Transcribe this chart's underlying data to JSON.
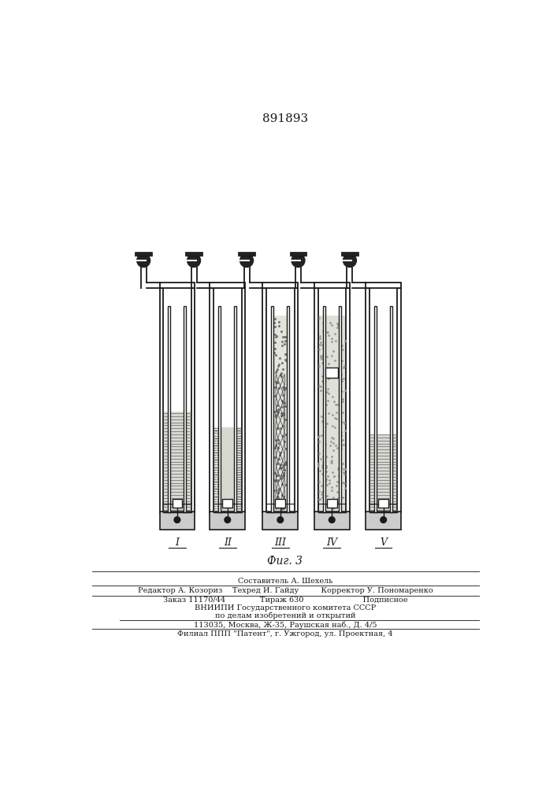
{
  "title_number": "891893",
  "fig_label": "Фиг. 3",
  "roman_numerals": [
    "I",
    "II",
    "III",
    "IV",
    "V"
  ],
  "footer_lines": [
    "Составитель А. Шехель",
    "Редактор А. Козориз    Техред И. Гайду         Корректор У. Пономаренко",
    "Заказ 11170/44              Тираж 630                        Подписное",
    "ВНИИПИ Государственного комитета СССР",
    "по делам изобретений и открытий",
    "113035, Москва, Ж-35, Раушская наб., Д. 4/5",
    "Филиал ППП \"Патент\", г. Ужгород, ул. Проектная, 4"
  ],
  "bg_color": "#ffffff",
  "line_color": "#1a1a1a"
}
